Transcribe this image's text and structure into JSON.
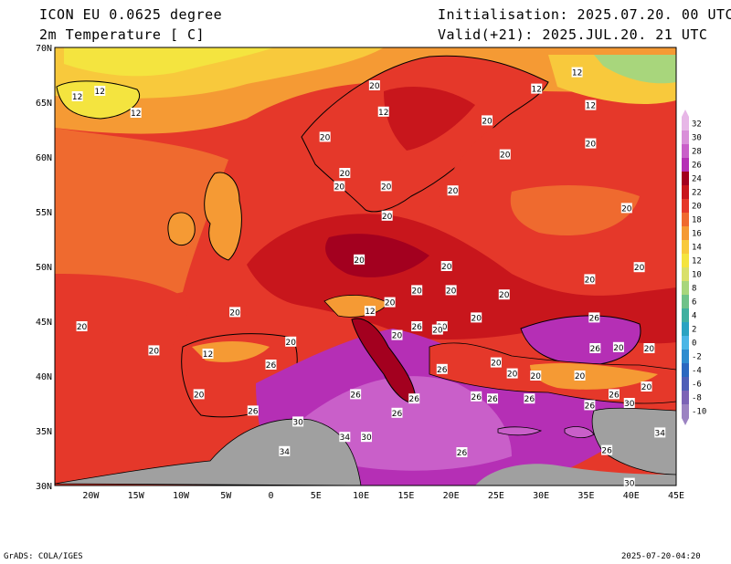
{
  "header": {
    "model": "ICON EU 0.0625 degree",
    "variable": "2m Temperature [ C]",
    "init": "Initialisation: 2025.07.20. 00 UTC",
    "valid": "Valid(+21): 2025.JUL.20. 21 UTC"
  },
  "map": {
    "lon_range": [
      -24,
      45
    ],
    "lat_range": [
      30,
      70
    ],
    "lat_ticks": [
      "30N",
      "35N",
      "40N",
      "45N",
      "50N",
      "55N",
      "60N",
      "65N",
      "70N"
    ],
    "lat_values": [
      30,
      35,
      40,
      45,
      50,
      55,
      60,
      65,
      70
    ],
    "lon_ticks": [
      "20W",
      "15W",
      "10W",
      "5W",
      "0",
      "5E",
      "10E",
      "15E",
      "20E",
      "25E",
      "30E",
      "35E",
      "40E",
      "45E"
    ],
    "lon_values": [
      -20,
      -15,
      -10,
      -5,
      0,
      5,
      10,
      15,
      20,
      25,
      30,
      35,
      40,
      45
    ],
    "contour_labels": [
      {
        "text": "12",
        "lon": 12.5,
        "lat": 64.1
      },
      {
        "text": "12",
        "lon": -21.5,
        "lat": 65.5
      },
      {
        "text": "12",
        "lon": -19,
        "lat": 66
      },
      {
        "text": "12",
        "lon": -15,
        "lat": 64
      },
      {
        "text": "20",
        "lon": 11.5,
        "lat": 66.5
      },
      {
        "text": "12",
        "lon": 34,
        "lat": 67.7
      },
      {
        "text": "12",
        "lon": 29.5,
        "lat": 66.2
      },
      {
        "text": "12",
        "lon": 35.5,
        "lat": 64.7
      },
      {
        "text": "20",
        "lon": 24,
        "lat": 63.3
      },
      {
        "text": "20",
        "lon": 6,
        "lat": 61.8
      },
      {
        "text": "20",
        "lon": 35.5,
        "lat": 61.2
      },
      {
        "text": "20",
        "lon": 26,
        "lat": 60.2
      },
      {
        "text": "20",
        "lon": 8.2,
        "lat": 58.5
      },
      {
        "text": "20",
        "lon": 7.6,
        "lat": 57.3
      },
      {
        "text": "20",
        "lon": 12.8,
        "lat": 57.3
      },
      {
        "text": "20",
        "lon": 20.2,
        "lat": 56.9
      },
      {
        "text": "20",
        "lon": 39.5,
        "lat": 55.3
      },
      {
        "text": "20",
        "lon": 12.9,
        "lat": 54.6
      },
      {
        "text": "20",
        "lon": 9.8,
        "lat": 50.6
      },
      {
        "text": "20",
        "lon": 19.5,
        "lat": 50.0
      },
      {
        "text": "20",
        "lon": 35.4,
        "lat": 48.8
      },
      {
        "text": "20",
        "lon": 40.9,
        "lat": 49.9
      },
      {
        "text": "20",
        "lon": 16.2,
        "lat": 47.8
      },
      {
        "text": "20",
        "lon": 20,
        "lat": 47.8
      },
      {
        "text": "20",
        "lon": 25.9,
        "lat": 47.4
      },
      {
        "text": "20",
        "lon": 13.2,
        "lat": 46.7
      },
      {
        "text": "20",
        "lon": -4,
        "lat": 45.8
      },
      {
        "text": "12",
        "lon": 11,
        "lat": 45.9
      },
      {
        "text": "20",
        "lon": -21,
        "lat": 44.5
      },
      {
        "text": "20",
        "lon": 14,
        "lat": 43.7
      },
      {
        "text": "20",
        "lon": 19,
        "lat": 44.5
      },
      {
        "text": "20",
        "lon": 22.8,
        "lat": 45.3
      },
      {
        "text": "26",
        "lon": 35.9,
        "lat": 45.3
      },
      {
        "text": "26",
        "lon": 16.2,
        "lat": 44.5
      },
      {
        "text": "20",
        "lon": 38.6,
        "lat": 42.6
      },
      {
        "text": "20",
        "lon": 18.5,
        "lat": 44.2
      },
      {
        "text": "20",
        "lon": -13,
        "lat": 42.3
      },
      {
        "text": "12",
        "lon": -7,
        "lat": 42.0
      },
      {
        "text": "20",
        "lon": 2.2,
        "lat": 43.1
      },
      {
        "text": "26",
        "lon": 36,
        "lat": 42.5
      },
      {
        "text": "20",
        "lon": 42,
        "lat": 42.5
      },
      {
        "text": "26",
        "lon": 0,
        "lat": 41.0
      },
      {
        "text": "26",
        "lon": 19,
        "lat": 40.6
      },
      {
        "text": "20",
        "lon": 25,
        "lat": 41.2
      },
      {
        "text": "20",
        "lon": 26.8,
        "lat": 40.2
      },
      {
        "text": "20",
        "lon": 29.4,
        "lat": 40.0
      },
      {
        "text": "20",
        "lon": 34.3,
        "lat": 40.0
      },
      {
        "text": "20",
        "lon": 41.7,
        "lat": 39.0
      },
      {
        "text": "20",
        "lon": -8,
        "lat": 38.3
      },
      {
        "text": "26",
        "lon": 9.4,
        "lat": 38.3
      },
      {
        "text": "26",
        "lon": 15.9,
        "lat": 37.9
      },
      {
        "text": "26",
        "lon": 22.8,
        "lat": 38.1
      },
      {
        "text": "26",
        "lon": 24.6,
        "lat": 37.9
      },
      {
        "text": "26",
        "lon": 28.7,
        "lat": 37.9
      },
      {
        "text": "26",
        "lon": 38.1,
        "lat": 38.3
      },
      {
        "text": "26",
        "lon": 35.4,
        "lat": 37.3
      },
      {
        "text": "30",
        "lon": 39.8,
        "lat": 37.5
      },
      {
        "text": "26",
        "lon": -2,
        "lat": 36.8
      },
      {
        "text": "26",
        "lon": 14,
        "lat": 36.6
      },
      {
        "text": "30",
        "lon": 3,
        "lat": 35.8
      },
      {
        "text": "34",
        "lon": 8.2,
        "lat": 34.4
      },
      {
        "text": "30",
        "lon": 10.6,
        "lat": 34.4
      },
      {
        "text": "34",
        "lon": 43.2,
        "lat": 34.8
      },
      {
        "text": "34",
        "lon": 1.5,
        "lat": 33.1
      },
      {
        "text": "26",
        "lon": 21.2,
        "lat": 33.0
      },
      {
        "text": "26",
        "lon": 37.3,
        "lat": 33.2
      },
      {
        "text": "30",
        "lon": 39.8,
        "lat": 30.2
      }
    ]
  },
  "colorbar": {
    "labels": [
      "32",
      "30",
      "28",
      "26",
      "24",
      "22",
      "20",
      "18",
      "16",
      "14",
      "12",
      "10",
      "8",
      "6",
      "4",
      "2",
      "0",
      "-2",
      "-4",
      "-6",
      "-8",
      "-10"
    ],
    "colors": [
      "#e7b7e7",
      "#d98fd9",
      "#c95fc9",
      "#b52fb5",
      "#a3001f",
      "#c8161c",
      "#e5382a",
      "#ef6a2f",
      "#f59a34",
      "#f8c93c",
      "#f4e43f",
      "#d9e06a",
      "#a8d67c",
      "#6fc289",
      "#3fb0a0",
      "#2aa3c2",
      "#4bb6e6",
      "#2e8ccf",
      "#2b68c0",
      "#4e5fb8",
      "#7c63b6",
      "#9c83c2"
    ]
  },
  "footer": {
    "left": "GrADS: COLA/IGES",
    "right": "2025-07-20-04:20"
  }
}
